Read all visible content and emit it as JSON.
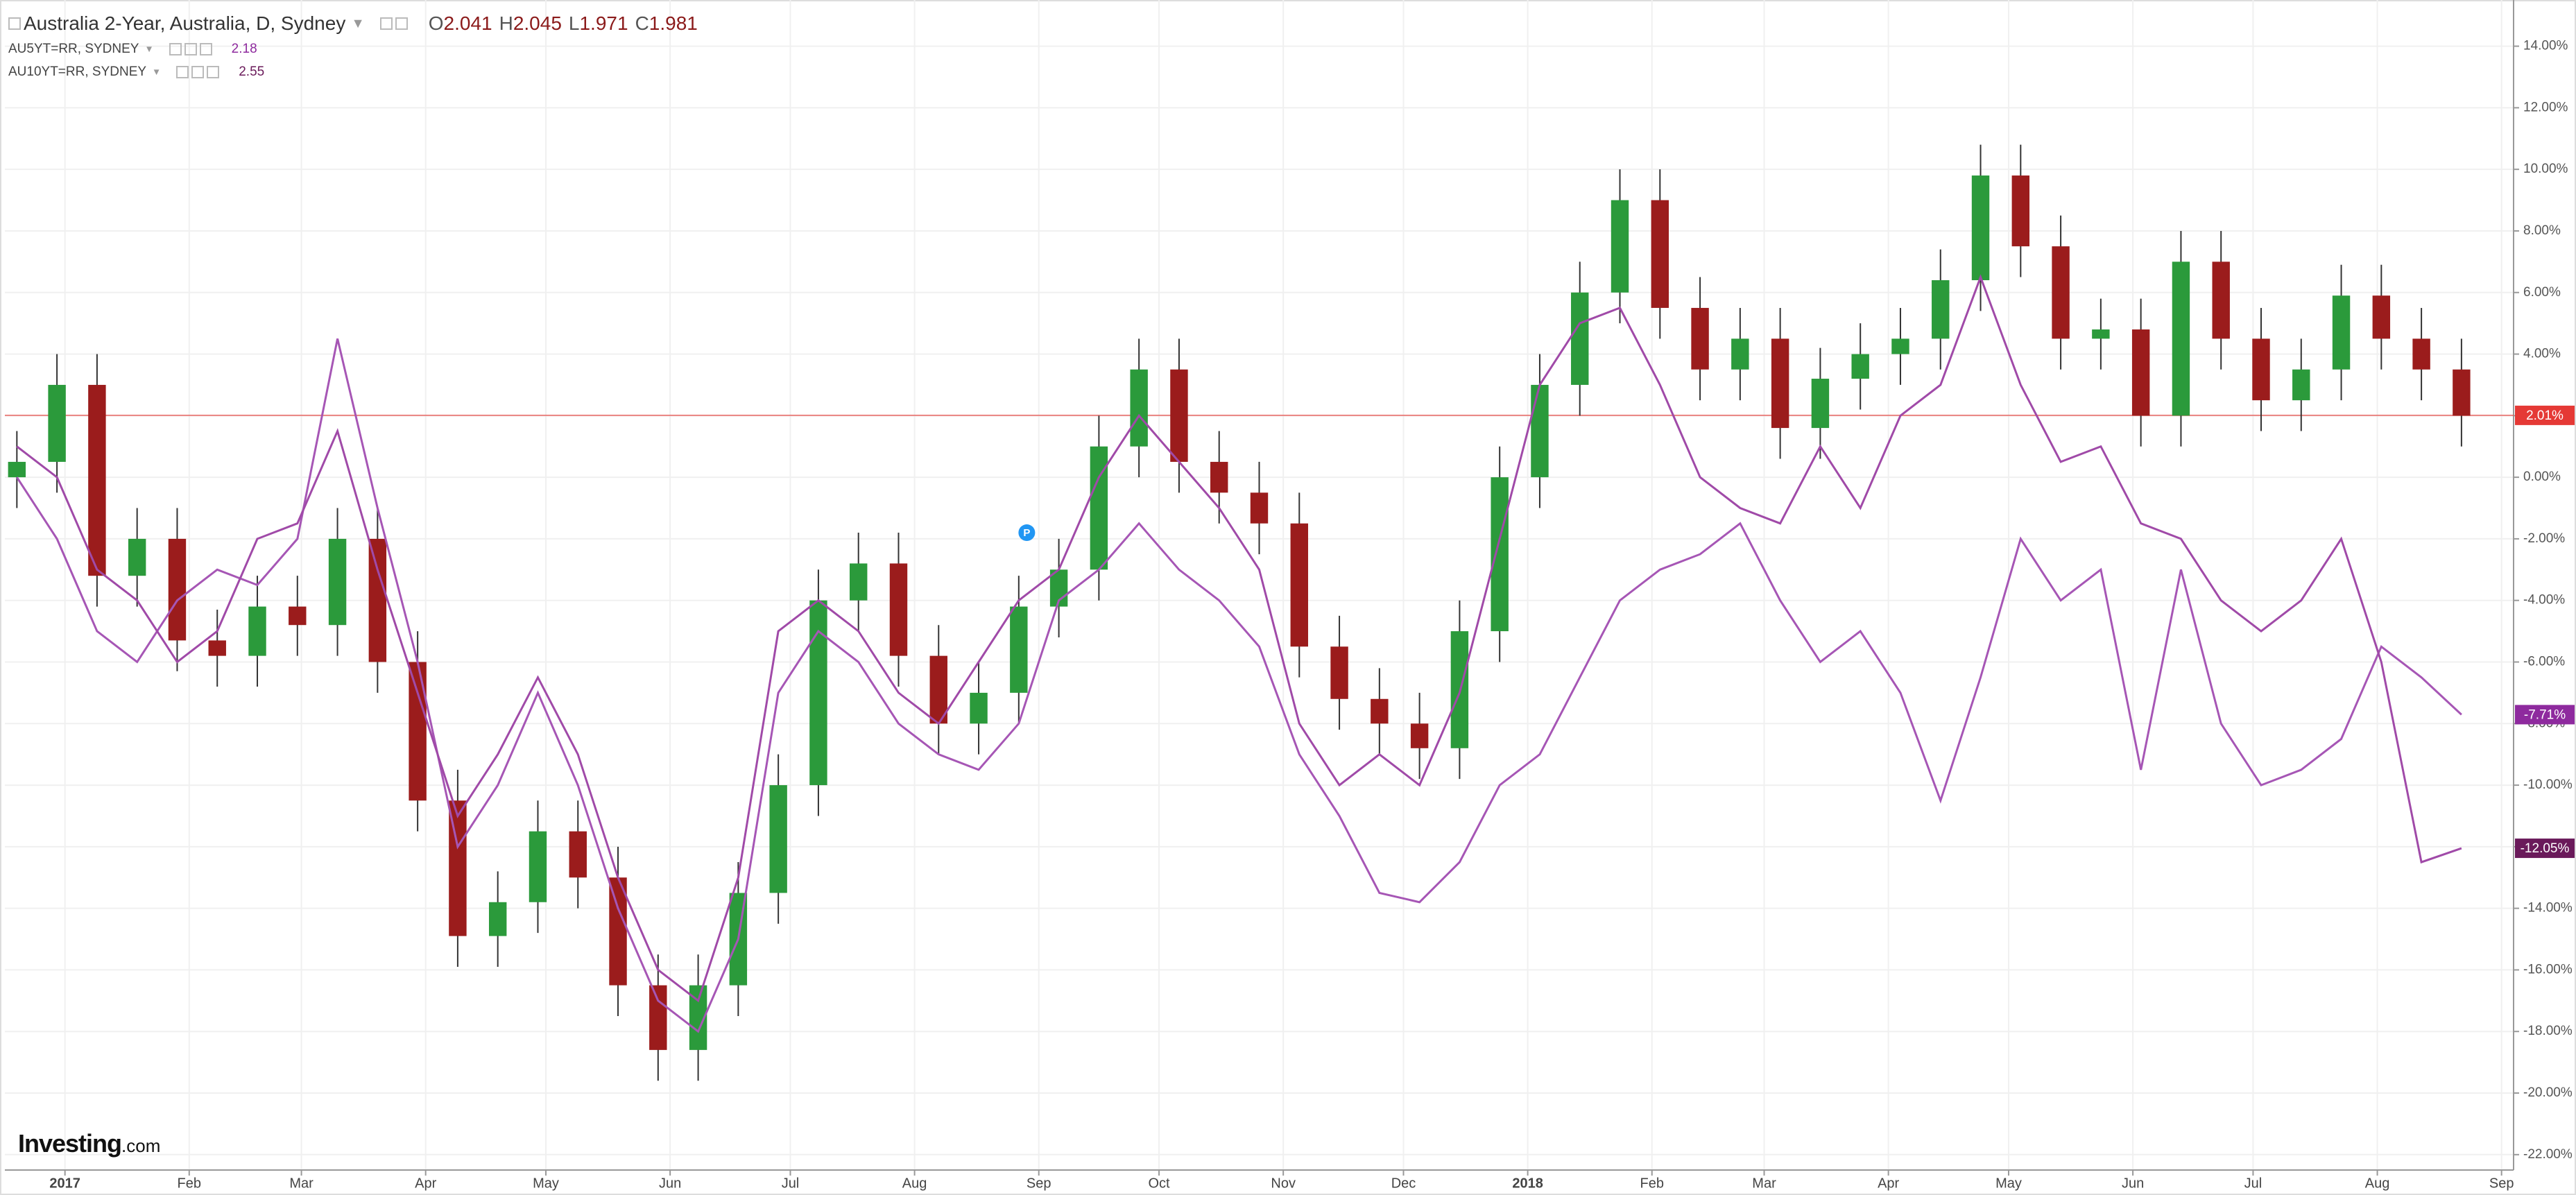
{
  "chart_data": {
    "type": "candlestick",
    "title": "Australia 2-Year, Australia, D, Sydney",
    "ohlc": [
      {
        "key": "O",
        "value": 2.041
      },
      {
        "key": "H",
        "value": 2.045
      },
      {
        "key": "L",
        "value": 1.971
      },
      {
        "key": "C",
        "value": 1.981
      }
    ],
    "x": [
      -12,
      -2,
      8,
      18,
      28,
      38,
      48,
      58,
      68,
      78,
      88,
      98,
      108,
      118,
      128,
      138,
      148,
      158,
      168,
      178,
      188,
      198,
      208,
      218,
      228,
      238,
      248,
      258,
      268,
      278,
      288,
      298,
      308,
      318,
      328,
      338,
      348,
      358,
      368,
      378,
      388,
      398,
      408,
      418,
      428,
      438,
      448,
      458,
      468,
      478,
      488,
      498,
      508,
      518,
      528,
      538,
      548,
      558,
      568,
      578,
      588,
      598
    ],
    "open": [
      0.0,
      0.5,
      3.0,
      -3.2,
      -2.0,
      -5.3,
      -5.8,
      -4.2,
      -4.8,
      -2.0,
      -6.0,
      -10.5,
      -14.9,
      -13.8,
      -11.5,
      -13.0,
      -16.5,
      -18.6,
      -16.5,
      -13.5,
      -10.0,
      -4.0,
      -2.8,
      -5.8,
      -8.0,
      -7.0,
      -4.2,
      -3.0,
      1.0,
      3.5,
      0.5,
      -0.5,
      -1.5,
      -5.5,
      -7.2,
      -8.0,
      -8.8,
      -5.0,
      0.0,
      3.0,
      6.0,
      9.0,
      5.5,
      3.5,
      4.5,
      1.6,
      3.2,
      4.0,
      4.5,
      6.4,
      9.8,
      7.5,
      4.5,
      4.8,
      2.0,
      7.0,
      4.5,
      2.5,
      3.5,
      5.9,
      4.5,
      3.5
    ],
    "high": [
      1.5,
      4,
      4,
      -1,
      -1,
      -4.3,
      -3.2,
      -3.2,
      -1,
      -1,
      -5,
      -9.5,
      -12.8,
      -10.5,
      -10.5,
      -12,
      -15.5,
      -15.5,
      -12.5,
      -9,
      -3,
      -1.8,
      -1.8,
      -4.8,
      -6,
      -3.2,
      -2,
      2,
      4.5,
      4.5,
      1.5,
      0.5,
      -0.5,
      -4.5,
      -6.2,
      -7,
      -4,
      1,
      4,
      7,
      10,
      10,
      6.5,
      5.5,
      5.5,
      4.2,
      5,
      5.5,
      7.4,
      10.8,
      10.8,
      8.5,
      5.8,
      5.8,
      8,
      8,
      5.5,
      4.5,
      6.9,
      6.9,
      5.5,
      4.5
    ],
    "low": [
      -1,
      -0.5,
      -4.2,
      -4.2,
      -6.3,
      -6.8,
      -6.8,
      -5.8,
      -5.8,
      -7,
      -11.5,
      -15.9,
      -15.9,
      -14.8,
      -14,
      -17.5,
      -19.6,
      -19.6,
      -17.5,
      -14.5,
      -11,
      -5,
      -6.8,
      -9,
      -9,
      -8,
      -5.2,
      -4,
      0,
      -0.5,
      -1.5,
      -2.5,
      -6.5,
      -8.2,
      -9,
      -9.8,
      -9.8,
      -6,
      -1,
      2,
      5,
      4.5,
      2.5,
      2.5,
      0.6,
      0.6,
      2.2,
      3,
      3.5,
      5.4,
      6.5,
      3.5,
      3.5,
      1,
      1,
      3.5,
      1.5,
      1.5,
      2.5,
      3.5,
      2.5,
      1
    ],
    "close": [
      0.5,
      3.0,
      -3.2,
      -2.0,
      -5.3,
      -5.8,
      -4.2,
      -4.8,
      -2.0,
      -6.0,
      -10.5,
      -14.9,
      -13.8,
      -11.5,
      -13.0,
      -16.5,
      -18.6,
      -16.5,
      -13.5,
      -10.0,
      -4.0,
      -2.8,
      -5.8,
      -8.0,
      -7.0,
      -4.2,
      -3.0,
      1.0,
      3.5,
      0.5,
      -0.5,
      -1.5,
      -5.5,
      -7.2,
      -8.0,
      -8.8,
      -5.0,
      0.0,
      3.0,
      6.0,
      9.0,
      5.5,
      3.5,
      4.5,
      1.6,
      3.2,
      4.0,
      4.5,
      6.4,
      9.8,
      7.5,
      4.5,
      4.8,
      2.0,
      7.0,
      4.5,
      2.5,
      3.5,
      5.9,
      4.5,
      3.5,
      2.0
    ],
    "up_color": "#2b9a3b",
    "down_color": "#9b1c1c",
    "series": [
      {
        "name": "AU5YT=RR, SYDNEY",
        "last": 2.18,
        "color": "#a656b5",
        "label_color": "#8e2a9e",
        "end_label": "-7.71%",
        "values": [
          0,
          -2,
          -5,
          -6,
          -4,
          -3,
          -3.5,
          -2,
          4.5,
          -1,
          -6,
          -12,
          -10,
          -7,
          -10,
          -14,
          -17,
          -18,
          -15,
          -7,
          -5,
          -6,
          -8,
          -9,
          -9.5,
          -8,
          -4,
          -3,
          -1.5,
          -3,
          -4,
          -5.5,
          -9,
          -11,
          -13.5,
          -13.8,
          -12.5,
          -10,
          -9,
          -6.5,
          -4,
          -3,
          -2.5,
          -1.5,
          -4,
          -6,
          -5,
          -7,
          -10.5,
          -6.5,
          -2,
          -4,
          -3,
          -9.5,
          -3,
          -8,
          -10,
          -9.5,
          -8.5,
          -5.5,
          -6.5,
          -7.71
        ]
      },
      {
        "name": "AU10YT=RR, SYDNEY",
        "last": 2.55,
        "color": "#a04aa8",
        "label_color": "#6a1a5a",
        "end_label": "-12.05%",
        "values": [
          1,
          0,
          -3,
          -4,
          -6,
          -5,
          -2,
          -1.5,
          1.5,
          -3,
          -7,
          -11,
          -9,
          -6.5,
          -9,
          -13,
          -16,
          -17,
          -13,
          -5,
          -4,
          -5,
          -7,
          -8,
          -6,
          -4,
          -3,
          0,
          2,
          0.5,
          -1,
          -3,
          -8,
          -10,
          -9,
          -10,
          -7,
          -2,
          3,
          5,
          5.5,
          3,
          0,
          -1,
          -1.5,
          1,
          -1,
          2,
          3,
          6.5,
          3,
          0.5,
          1,
          -1.5,
          -2,
          -4,
          -5,
          -4,
          -2,
          -6,
          -12.5,
          -12.05
        ]
      }
    ],
    "price_line": {
      "value": 2.01,
      "label": "2.01%",
      "color": "#e53935"
    },
    "annotation": {
      "text": "P",
      "x": 240,
      "y": -1.8,
      "color": "#2196f3"
    },
    "xlim": [
      -15,
      611
    ],
    "ylim": [
      -22.5,
      15.5
    ],
    "xticks": [
      {
        "value": 0,
        "label": "2017"
      },
      {
        "value": 31,
        "label": "Feb"
      },
      {
        "value": 59,
        "label": "Mar"
      },
      {
        "value": 90,
        "label": "Apr"
      },
      {
        "value": 120,
        "label": "May"
      },
      {
        "value": 151,
        "label": "Jun"
      },
      {
        "value": 181,
        "label": "Jul"
      },
      {
        "value": 212,
        "label": "Aug"
      },
      {
        "value": 243,
        "label": "Sep"
      },
      {
        "value": 273,
        "label": "Oct"
      },
      {
        "value": 304,
        "label": "Nov"
      },
      {
        "value": 334,
        "label": "Dec"
      },
      {
        "value": 365,
        "label": "2018"
      },
      {
        "value": 396,
        "label": "Feb"
      },
      {
        "value": 424,
        "label": "Mar"
      },
      {
        "value": 455,
        "label": "Apr"
      },
      {
        "value": 485,
        "label": "May"
      },
      {
        "value": 516,
        "label": "Jun"
      },
      {
        "value": 546,
        "label": "Jul"
      },
      {
        "value": 577,
        "label": "Aug"
      },
      {
        "value": 608,
        "label": "Sep"
      }
    ],
    "yticks": [
      {
        "value": 14,
        "label": "14.00%"
      },
      {
        "value": 12,
        "label": "12.00%"
      },
      {
        "value": 10,
        "label": "10.00%"
      },
      {
        "value": 8,
        "label": "8.00%"
      },
      {
        "value": 6,
        "label": "6.00%"
      },
      {
        "value": 4,
        "label": "4.00%"
      },
      {
        "value": 2,
        "label": "2.00%"
      },
      {
        "value": 0,
        "label": "0.00%"
      },
      {
        "value": -2,
        "label": "-2.00%"
      },
      {
        "value": -4,
        "label": "-4.00%"
      },
      {
        "value": -6,
        "label": "-6.00%"
      },
      {
        "value": -8,
        "label": "-8.00%"
      },
      {
        "value": -10,
        "label": "-10.00%"
      },
      {
        "value": -12,
        "label": "-12.00%"
      },
      {
        "value": -14,
        "label": "-14.00%"
      },
      {
        "value": -16,
        "label": "-16.00%"
      },
      {
        "value": -18,
        "label": "-18.00%"
      },
      {
        "value": -20,
        "label": "-20.00%"
      },
      {
        "value": -22,
        "label": "-22.00%"
      }
    ],
    "grid": true,
    "logo": {
      "brand": "Investing",
      "suffix": ".com"
    }
  }
}
